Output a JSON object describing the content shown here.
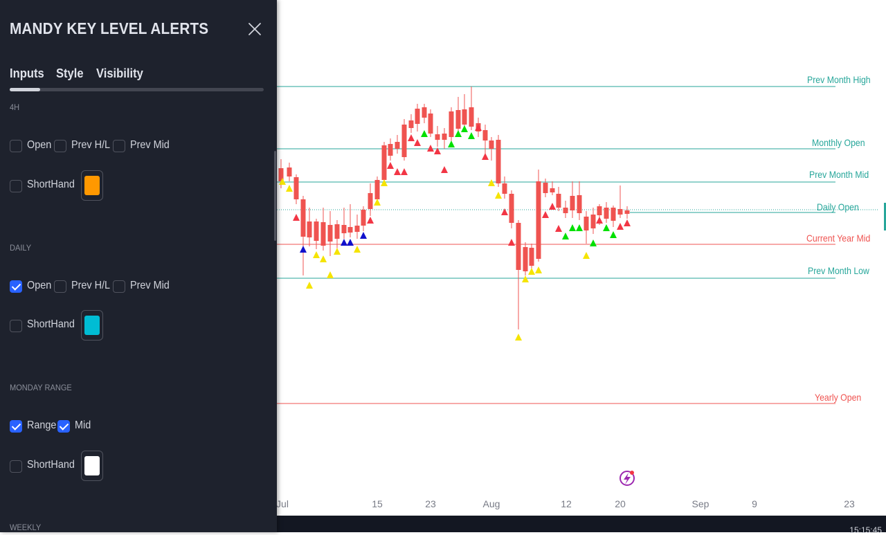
{
  "panel": {
    "title": "MANDY KEY LEVEL ALERTS",
    "tabs": [
      {
        "label": "Inputs",
        "active": true
      },
      {
        "label": "Style",
        "active": false
      },
      {
        "label": "Visibility",
        "active": false
      }
    ],
    "sections": [
      {
        "label": "4H",
        "row1": [
          {
            "label": "Open",
            "checked": false
          },
          {
            "label": "Prev H/L",
            "checked": false
          },
          {
            "label": "Prev Mid",
            "checked": false
          }
        ],
        "shorthand": {
          "label": "ShortHand",
          "checked": false
        },
        "color": "#ff9800"
      },
      {
        "label": "DAILY",
        "row1": [
          {
            "label": "Open",
            "checked": true
          },
          {
            "label": "Prev H/L",
            "checked": false
          },
          {
            "label": "Prev Mid",
            "checked": false
          }
        ],
        "shorthand": {
          "label": "ShortHand",
          "checked": false
        },
        "color": "#00bcd4"
      },
      {
        "label": "MONDAY RANGE",
        "row1": [
          {
            "label": "Range",
            "checked": true
          },
          {
            "label": "Mid",
            "checked": true
          }
        ],
        "shorthand": {
          "label": "ShortHand",
          "checked": false
        },
        "color": "#ffffff"
      },
      {
        "label": "WEEKLY"
      }
    ]
  },
  "chart": {
    "level_lines": [
      {
        "label": "Prev Month High",
        "color": "#26a69a"
      },
      {
        "label": "Monthly Open",
        "color": "#26a69a"
      },
      {
        "label": "Prev Month Mid",
        "color": "#26a69a"
      },
      {
        "label": "Daily Open",
        "color": "#26a69a"
      },
      {
        "label": "Current Year Mid",
        "color": "#ef5350"
      },
      {
        "label": "Prev Month Low",
        "color": "#26a69a"
      },
      {
        "label": "Yearly Open",
        "color": "#ef5350"
      }
    ],
    "x_labels": [
      "Jul",
      "15",
      "23",
      "Aug",
      "12",
      "20",
      "Sep",
      "9",
      "23"
    ],
    "colors": {
      "up": "#26a69a",
      "down": "#ef5350",
      "tri_yellow": "#f5e400",
      "tri_green": "#00e000",
      "tri_red": "#f23645",
      "tri_blue": "#1111cc"
    }
  },
  "bottom_bar": {
    "clock": "15:15:45"
  }
}
